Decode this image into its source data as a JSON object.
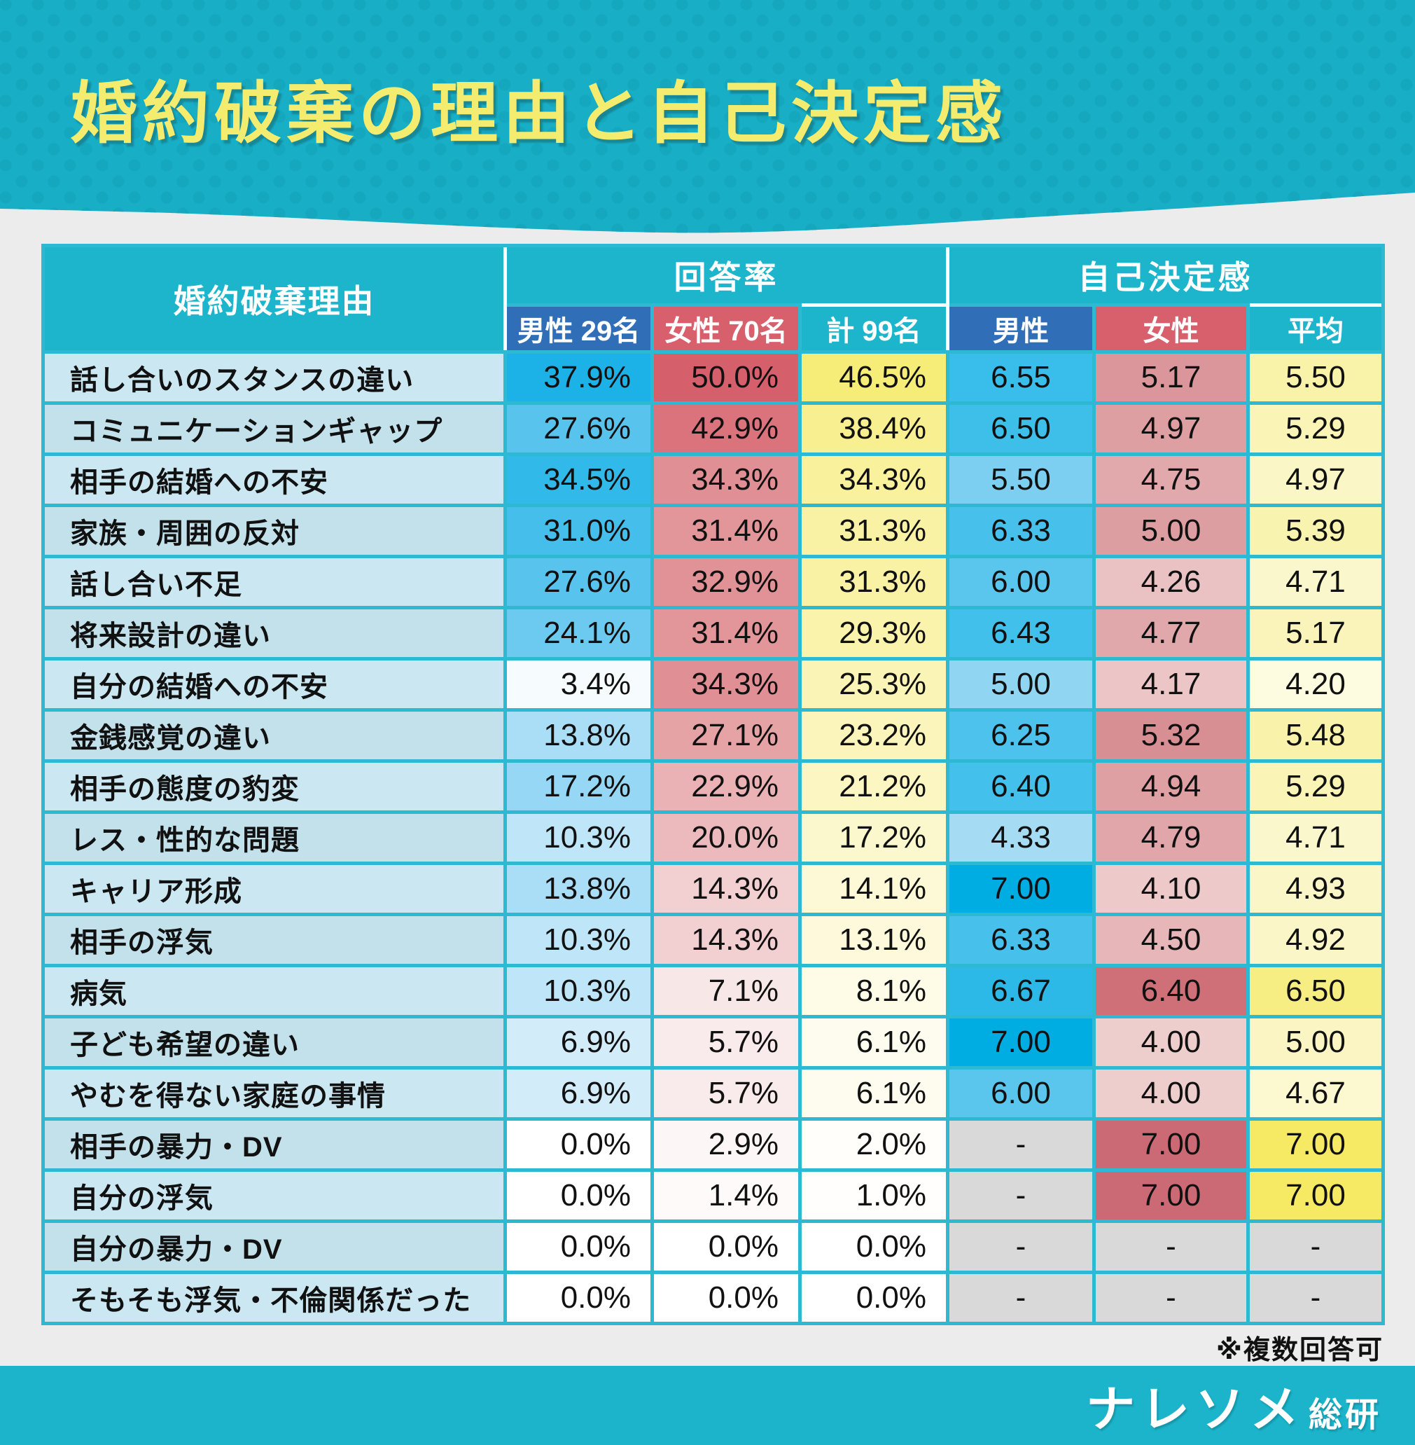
{
  "title": "婚約破棄の理由と自己決定感",
  "table": {
    "reason_header": "婚約破棄理由",
    "group_answer": "回答率",
    "group_sd": "自己決定感",
    "sub_headers": {
      "male_n": "男性 29名",
      "female_n": "女性 70名",
      "total_n": "計 99名",
      "male": "男性",
      "female": "女性",
      "average": "平均"
    },
    "rows": [
      {
        "reason": "話し合いのスタンスの違い",
        "cells": [
          {
            "v": "37.9%",
            "bg": "#1cb2e8"
          },
          {
            "v": "50.0%",
            "bg": "#d55f6b"
          },
          {
            "v": "46.5%",
            "bg": "#f6ec78"
          },
          {
            "v": "6.55",
            "bg": "#39bdea"
          },
          {
            "v": "5.17",
            "bg": "#da969a"
          },
          {
            "v": "5.50",
            "bg": "#f9f2a9"
          }
        ]
      },
      {
        "reason": "コミュニケーションギャップ",
        "cells": [
          {
            "v": "27.6%",
            "bg": "#58c4ee"
          },
          {
            "v": "42.9%",
            "bg": "#da737c"
          },
          {
            "v": "38.4%",
            "bg": "#f8ef90"
          },
          {
            "v": "6.50",
            "bg": "#3dbfea"
          },
          {
            "v": "4.97",
            "bg": "#de9fa2"
          },
          {
            "v": "5.29",
            "bg": "#faf4b6"
          }
        ]
      },
      {
        "reason": "相手の結婚への不安",
        "cells": [
          {
            "v": "34.5%",
            "bg": "#31b9ea"
          },
          {
            "v": "34.3%",
            "bg": "#e08f94"
          },
          {
            "v": "34.3%",
            "bg": "#f9f19c"
          },
          {
            "v": "5.50",
            "bg": "#7ccff0"
          },
          {
            "v": "4.75",
            "bg": "#e1a9ac"
          },
          {
            "v": "4.97",
            "bg": "#fbf6c6"
          }
        ]
      },
      {
        "reason": "家族・周囲の反対",
        "cells": [
          {
            "v": "31.0%",
            "bg": "#45beec"
          },
          {
            "v": "31.4%",
            "bg": "#e2969a"
          },
          {
            "v": "31.3%",
            "bg": "#f9f2a5"
          },
          {
            "v": "6.33",
            "bg": "#47c1eb"
          },
          {
            "v": "5.00",
            "bg": "#dd9ea1"
          },
          {
            "v": "5.39",
            "bg": "#f9f3b0"
          }
        ]
      },
      {
        "reason": "話し合い不足",
        "cells": [
          {
            "v": "27.6%",
            "bg": "#58c4ee"
          },
          {
            "v": "32.9%",
            "bg": "#e19297"
          },
          {
            "v": "31.3%",
            "bg": "#f9f2a5"
          },
          {
            "v": "6.00",
            "bg": "#5ac6ed"
          },
          {
            "v": "4.26",
            "bg": "#eac2c3"
          },
          {
            "v": "4.71",
            "bg": "#fbf7cd"
          }
        ]
      },
      {
        "reason": "将来設計の違い",
        "cells": [
          {
            "v": "24.1%",
            "bg": "#6ccaf0"
          },
          {
            "v": "31.4%",
            "bg": "#e2969a"
          },
          {
            "v": "29.3%",
            "bg": "#faf3ab"
          },
          {
            "v": "6.43",
            "bg": "#41c0eb"
          },
          {
            "v": "4.77",
            "bg": "#e1a8ab"
          },
          {
            "v": "5.17",
            "bg": "#faf4bb"
          }
        ]
      },
      {
        "reason": "自分の結婚への不安",
        "cells": [
          {
            "v": "3.4%",
            "bg": "#f6fbfe"
          },
          {
            "v": "34.3%",
            "bg": "#e08f94"
          },
          {
            "v": "25.3%",
            "bg": "#faf4b6"
          },
          {
            "v": "5.00",
            "bg": "#90d5f2"
          },
          {
            "v": "4.17",
            "bg": "#ecc6c7"
          },
          {
            "v": "4.20",
            "bg": "#fdfbe0"
          }
        ]
      },
      {
        "reason": "金銭感覚の違い",
        "cells": [
          {
            "v": "13.8%",
            "bg": "#aaddf6"
          },
          {
            "v": "27.1%",
            "bg": "#e6a3a6"
          },
          {
            "v": "23.2%",
            "bg": "#fbf5bc"
          },
          {
            "v": "6.25",
            "bg": "#4cc2ec"
          },
          {
            "v": "5.32",
            "bg": "#d88f94"
          },
          {
            "v": "5.48",
            "bg": "#f9f2aa"
          }
        ]
      },
      {
        "reason": "相手の態度の豹変",
        "cells": [
          {
            "v": "17.2%",
            "bg": "#95d7f4"
          },
          {
            "v": "22.9%",
            "bg": "#eab2b4"
          },
          {
            "v": "21.2%",
            "bg": "#fbf6c2"
          },
          {
            "v": "6.40",
            "bg": "#43c0eb"
          },
          {
            "v": "4.94",
            "bg": "#dea0a3"
          },
          {
            "v": "5.29",
            "bg": "#faf4b6"
          }
        ]
      },
      {
        "reason": "レス・性的な問題",
        "cells": [
          {
            "v": "10.3%",
            "bg": "#bee5f8"
          },
          {
            "v": "20.0%",
            "bg": "#ecbabc"
          },
          {
            "v": "17.2%",
            "bg": "#fcf8cd"
          },
          {
            "v": "4.33",
            "bg": "#a5dbf3"
          },
          {
            "v": "4.79",
            "bg": "#e0a6a9"
          },
          {
            "v": "4.71",
            "bg": "#fbf7cd"
          }
        ]
      },
      {
        "reason": "キャリア形成",
        "cells": [
          {
            "v": "13.8%",
            "bg": "#aaddf6"
          },
          {
            "v": "14.3%",
            "bg": "#f2cfd0"
          },
          {
            "v": "14.1%",
            "bg": "#fdf9d7"
          },
          {
            "v": "7.00",
            "bg": "#00ade2"
          },
          {
            "v": "4.10",
            "bg": "#edc9c9"
          },
          {
            "v": "4.93",
            "bg": "#fbf6c8"
          }
        ]
      },
      {
        "reason": "相手の浮気",
        "cells": [
          {
            "v": "10.3%",
            "bg": "#bee5f8"
          },
          {
            "v": "14.3%",
            "bg": "#f2cfd0"
          },
          {
            "v": "13.1%",
            "bg": "#fdf9da"
          },
          {
            "v": "6.33",
            "bg": "#47c1eb"
          },
          {
            "v": "4.50",
            "bg": "#e6b6b8"
          },
          {
            "v": "4.92",
            "bg": "#fbf6c8"
          }
        ]
      },
      {
        "reason": "病気",
        "cells": [
          {
            "v": "10.3%",
            "bg": "#bee5f8"
          },
          {
            "v": "7.1%",
            "bg": "#f8e7e7"
          },
          {
            "v": "8.1%",
            "bg": "#fefce7"
          },
          {
            "v": "6.67",
            "bg": "#2db9e8"
          },
          {
            "v": "6.40",
            "bg": "#cf6f78"
          },
          {
            "v": "6.50",
            "bg": "#f7ee83"
          }
        ]
      },
      {
        "reason": "子ども希望の違い",
        "cells": [
          {
            "v": "6.9%",
            "bg": "#d2ecfa"
          },
          {
            "v": "5.7%",
            "bg": "#f9ebeb"
          },
          {
            "v": "6.1%",
            "bg": "#fefcee"
          },
          {
            "v": "7.00",
            "bg": "#00ade2"
          },
          {
            "v": "4.00",
            "bg": "#eecdcd"
          },
          {
            "v": "5.00",
            "bg": "#faf5c3"
          }
        ]
      },
      {
        "reason": "やむを得ない家庭の事情",
        "cells": [
          {
            "v": "6.9%",
            "bg": "#d2ecfa"
          },
          {
            "v": "5.7%",
            "bg": "#f9ebeb"
          },
          {
            "v": "6.1%",
            "bg": "#fefcee"
          },
          {
            "v": "6.00",
            "bg": "#5ac6ed"
          },
          {
            "v": "4.00",
            "bg": "#eecdcd"
          },
          {
            "v": "4.67",
            "bg": "#fcf8d0"
          }
        ]
      },
      {
        "reason": "相手の暴力・DV",
        "cells": [
          {
            "v": "0.0%",
            "bg": "#ffffff"
          },
          {
            "v": "2.9%",
            "bg": "#fdf6f6"
          },
          {
            "v": "2.0%",
            "bg": "#fffefa"
          },
          {
            "v": "-",
            "bg": "#d9d9d9"
          },
          {
            "v": "7.00",
            "bg": "#cb6a74"
          },
          {
            "v": "7.00",
            "bg": "#f6ea64"
          }
        ]
      },
      {
        "reason": "自分の浮気",
        "cells": [
          {
            "v": "0.0%",
            "bg": "#ffffff"
          },
          {
            "v": "1.4%",
            "bg": "#fefafa"
          },
          {
            "v": "1.0%",
            "bg": "#fffefc"
          },
          {
            "v": "-",
            "bg": "#d9d9d9"
          },
          {
            "v": "7.00",
            "bg": "#cb6a74"
          },
          {
            "v": "7.00",
            "bg": "#f6ea64"
          }
        ]
      },
      {
        "reason": "自分の暴力・DV",
        "cells": [
          {
            "v": "0.0%",
            "bg": "#ffffff"
          },
          {
            "v": "0.0%",
            "bg": "#ffffff"
          },
          {
            "v": "0.0%",
            "bg": "#ffffff"
          },
          {
            "v": "-",
            "bg": "#d9d9d9"
          },
          {
            "v": "-",
            "bg": "#d9d9d9"
          },
          {
            "v": "-",
            "bg": "#d9d9d9"
          }
        ]
      },
      {
        "reason": "そもそも浮気・不倫関係だった",
        "cells": [
          {
            "v": "0.0%",
            "bg": "#ffffff"
          },
          {
            "v": "0.0%",
            "bg": "#ffffff"
          },
          {
            "v": "0.0%",
            "bg": "#ffffff"
          },
          {
            "v": "-",
            "bg": "#d9d9d9"
          },
          {
            "v": "-",
            "bg": "#d9d9d9"
          },
          {
            "v": "-",
            "bg": "#d9d9d9"
          }
        ]
      }
    ]
  },
  "footnote": "※複数回答可",
  "footer_logo": {
    "main": "ナレソメ",
    "sub": "総研"
  },
  "colors": {
    "hero_teal": "#17aec6",
    "hero_dot": "#14a7bd",
    "title_yellow": "#f4ec6f",
    "grid_teal": "#2cb9d1",
    "header_teal": "#1cb5cb",
    "male_blue": "#306fb7",
    "female_red": "#d8606c",
    "label_blue": "#cbe7f1",
    "label_blue_alt": "#c2e1eb",
    "na_gray": "#d9d9d9",
    "page_gray": "#ececec",
    "footer_teal": "#1cb4ca"
  },
  "chart_data": {
    "type": "table",
    "title": "婚約破棄の理由と自己決定感",
    "column_groups": [
      "回答率",
      "自己決定感"
    ],
    "columns": [
      "婚約破棄理由",
      "回答率 男性(29名)",
      "回答率 女性(70名)",
      "回答率 計(99名)",
      "自己決定感 男性",
      "自己決定感 女性",
      "自己決定感 平均"
    ],
    "rows": [
      [
        "話し合いのスタンスの違い",
        37.9,
        50.0,
        46.5,
        6.55,
        5.17,
        5.5
      ],
      [
        "コミュニケーションギャップ",
        27.6,
        42.9,
        38.4,
        6.5,
        4.97,
        5.29
      ],
      [
        "相手の結婚への不安",
        34.5,
        34.3,
        34.3,
        5.5,
        4.75,
        4.97
      ],
      [
        "家族・周囲の反対",
        31.0,
        31.4,
        31.3,
        6.33,
        5.0,
        5.39
      ],
      [
        "話し合い不足",
        27.6,
        32.9,
        31.3,
        6.0,
        4.26,
        4.71
      ],
      [
        "将来設計の違い",
        24.1,
        31.4,
        29.3,
        6.43,
        4.77,
        5.17
      ],
      [
        "自分の結婚への不安",
        3.4,
        34.3,
        25.3,
        5.0,
        4.17,
        4.2
      ],
      [
        "金銭感覚の違い",
        13.8,
        27.1,
        23.2,
        6.25,
        5.32,
        5.48
      ],
      [
        "相手の態度の豹変",
        17.2,
        22.9,
        21.2,
        6.4,
        4.94,
        5.29
      ],
      [
        "レス・性的な問題",
        10.3,
        20.0,
        17.2,
        4.33,
        4.79,
        4.71
      ],
      [
        "キャリア形成",
        13.8,
        14.3,
        14.1,
        7.0,
        4.1,
        4.93
      ],
      [
        "相手の浮気",
        10.3,
        14.3,
        13.1,
        6.33,
        4.5,
        4.92
      ],
      [
        "病気",
        10.3,
        7.1,
        8.1,
        6.67,
        6.4,
        6.5
      ],
      [
        "子ども希望の違い",
        6.9,
        5.7,
        6.1,
        7.0,
        4.0,
        5.0
      ],
      [
        "やむを得ない家庭の事情",
        6.9,
        5.7,
        6.1,
        6.0,
        4.0,
        4.67
      ],
      [
        "相手の暴力・DV",
        0.0,
        2.9,
        2.0,
        null,
        7.0,
        7.0
      ],
      [
        "自分の浮気",
        0.0,
        1.4,
        1.0,
        null,
        7.0,
        7.0
      ],
      [
        "自分の暴力・DV",
        0.0,
        0.0,
        0.0,
        null,
        null,
        null
      ],
      [
        "そもそも浮気・不倫関係だった",
        0.0,
        0.0,
        0.0,
        null,
        null,
        null
      ]
    ],
    "legend_position": "none",
    "grid": true
  }
}
